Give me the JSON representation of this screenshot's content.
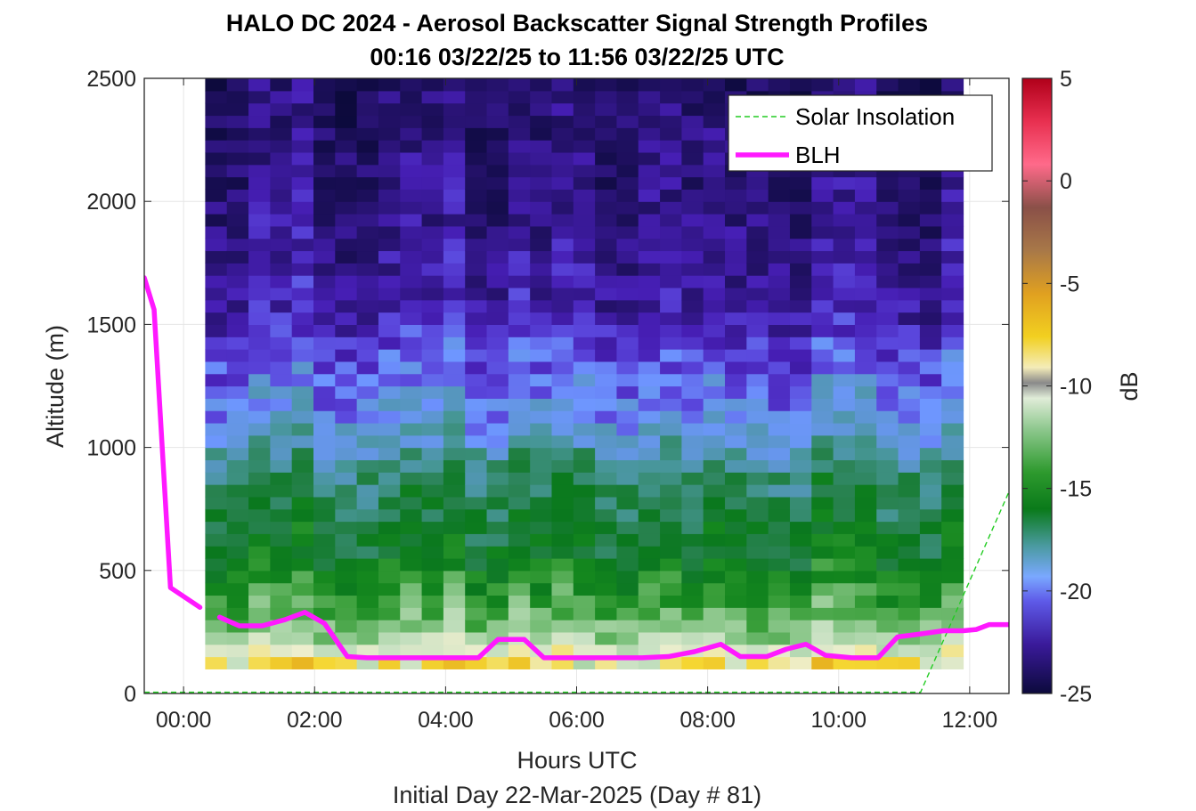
{
  "chart_data": {
    "type": "heatmap",
    "title_line1": "HALO DC 2024 - Aerosol Backscatter Signal Strength Profiles",
    "title_line2": "00:16 03/22/25 to 11:56 03/22/25  UTC",
    "xlabel": "Hours UTC",
    "xlabel2": "Initial Day 22-Mar-2025 (Day # 81)",
    "ylabel": "Altitude (m)",
    "xlim": [
      -0.6,
      12.6
    ],
    "ylim": [
      0,
      2500
    ],
    "xticks": [
      0,
      2,
      4,
      6,
      8,
      10,
      12
    ],
    "xtick_labels": [
      "00:00",
      "02:00",
      "04:00",
      "06:00",
      "08:00",
      "10:00",
      "12:00"
    ],
    "yticks": [
      0,
      500,
      1000,
      1500,
      2000,
      2500
    ],
    "ytick_labels": [
      "0",
      "500",
      "1000",
      "1500",
      "2000",
      "2500"
    ],
    "grid": true,
    "legend_position": "top-right",
    "colorbar": {
      "label": "dB",
      "range": [
        -25,
        5
      ],
      "ticks": [
        5,
        0,
        -5,
        -10,
        -15,
        -20,
        -25
      ],
      "tick_labels": [
        "5",
        "0",
        "-5",
        "-10",
        "-15",
        "-20",
        "-25"
      ]
    },
    "heatmap_grid": {
      "time_start": 0.33,
      "time_end": 11.9,
      "n_cols": 35,
      "alt_bottom": 100,
      "alt_top": 2500,
      "alt_step": 50
    },
    "series": [
      {
        "name": "Solar Insolation",
        "style": "dashed",
        "color": "#22cc22",
        "x": [
          -0.6,
          11.25,
          12.6
        ],
        "y": [
          5,
          5,
          820
        ]
      },
      {
        "name": "BLH",
        "style": "solid",
        "color": "#ff19ff",
        "segments": [
          {
            "x": [
              -0.6,
              -0.45,
              -0.2,
              0.25
            ],
            "y": [
              1690,
              1560,
              430,
              350
            ]
          },
          {
            "x": [
              0.55,
              0.85,
              1.2,
              1.55,
              1.85,
              2.15,
              2.5,
              2.8,
              3.2,
              3.6,
              4.0,
              4.5,
              4.8,
              5.2,
              5.5,
              5.9,
              6.3,
              6.7,
              7.0,
              7.4,
              7.8,
              8.2,
              8.5,
              8.9,
              9.2,
              9.5,
              9.8,
              10.2,
              10.6,
              10.9,
              11.2,
              11.6,
              11.9,
              12.1,
              12.3,
              12.6
            ],
            "y": [
              310,
              275,
              275,
              300,
              330,
              285,
              150,
              145,
              145,
              145,
              145,
              145,
              220,
              220,
              145,
              145,
              145,
              145,
              145,
              150,
              170,
              200,
              150,
              150,
              180,
              200,
              155,
              145,
              145,
              230,
              240,
              255,
              255,
              260,
              280,
              280
            ]
          }
        ]
      }
    ]
  }
}
